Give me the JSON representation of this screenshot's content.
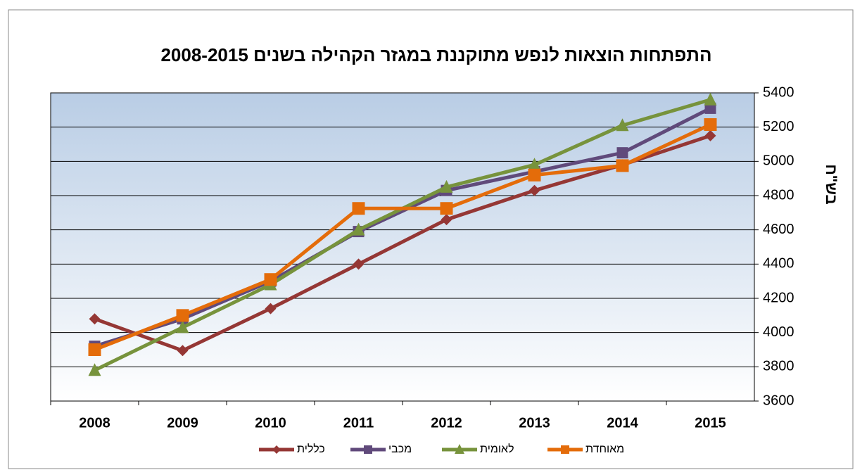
{
  "chart_data": {
    "type": "line",
    "title": "התפתחות הוצאות לנפש מתוקננת במגזר הקהילה בשנים 2008-2015",
    "y_label": "בש\"ח",
    "categories": [
      "2008",
      "2009",
      "2010",
      "2011",
      "2012",
      "2013",
      "2014",
      "2015"
    ],
    "series": [
      {
        "name": "כללית",
        "color": "#953735",
        "marker": "diamond",
        "values": [
          4080,
          3895,
          4140,
          4400,
          4660,
          4830,
          4980,
          5150
        ]
      },
      {
        "name": "מכבי",
        "color": "#604a7b",
        "marker": "square",
        "values": [
          3920,
          4080,
          4300,
          4590,
          4830,
          4940,
          5050,
          5310
        ]
      },
      {
        "name": "לאומית",
        "color": "#77933c",
        "marker": "triangle",
        "values": [
          3780,
          4030,
          4280,
          4600,
          4850,
          4980,
          5210,
          5360
        ]
      },
      {
        "name": "מאוחדת",
        "color": "#e46c0a",
        "marker": "square",
        "values": [
          3900,
          4100,
          4310,
          4725,
          4725,
          4920,
          4975,
          5215
        ]
      }
    ],
    "ylim": [
      3600,
      5400
    ],
    "yticks": [
      3600,
      3800,
      4000,
      4200,
      4400,
      4600,
      4800,
      5000,
      5200,
      5400
    ],
    "grid": true,
    "y_axis_side": "right",
    "legend": "bottom"
  }
}
